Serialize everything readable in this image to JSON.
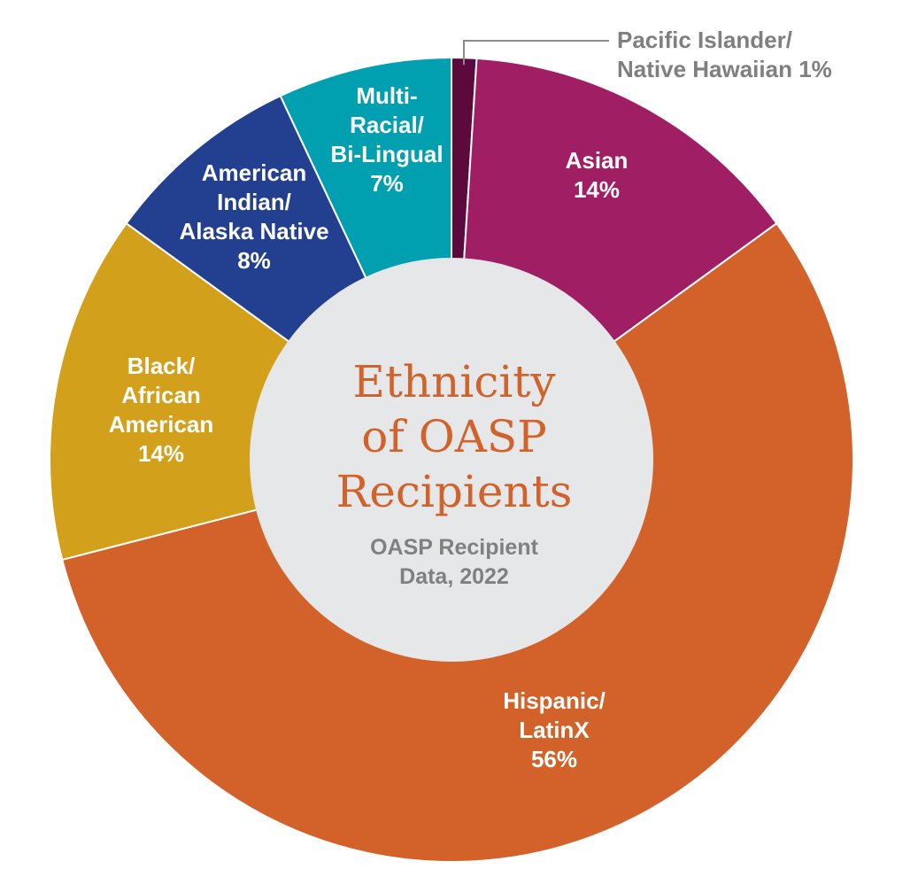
{
  "chart_data": {
    "type": "pie",
    "variant": "donut",
    "title_lines": [
      "Ethnicity",
      "of OASP",
      "Recipients"
    ],
    "subtitle_lines": [
      "OASP Recipient",
      "Data, 2022"
    ],
    "slices": [
      {
        "label_lines": [
          "Pacific Islander/",
          "Native Hawaiian 1%"
        ],
        "value": 1,
        "color": "#5c0a3e",
        "label_style": "callout"
      },
      {
        "label_lines": [
          "Asian",
          "14%"
        ],
        "value": 14,
        "color": "#a01e64",
        "label_style": "inside"
      },
      {
        "label_lines": [
          "Hispanic/",
          "LatinX",
          "56%"
        ],
        "value": 56,
        "color": "#d2622a",
        "label_style": "inside"
      },
      {
        "label_lines": [
          "Black/",
          "African",
          "American",
          "14%"
        ],
        "value": 14,
        "color": "#d3a01c",
        "label_style": "inside"
      },
      {
        "label_lines": [
          "American",
          "Indian/",
          "Alaska Native",
          "8%"
        ],
        "value": 8,
        "color": "#233f8f",
        "label_style": "inside"
      },
      {
        "label_lines": [
          "Multi-",
          "Racial/",
          "Bi-Lingual",
          "7%"
        ],
        "value": 7,
        "color": "#00a0b0",
        "label_style": "inside"
      }
    ],
    "center_color": "#e6e7e8",
    "start_angle_deg": 0,
    "direction": "clockwise"
  }
}
